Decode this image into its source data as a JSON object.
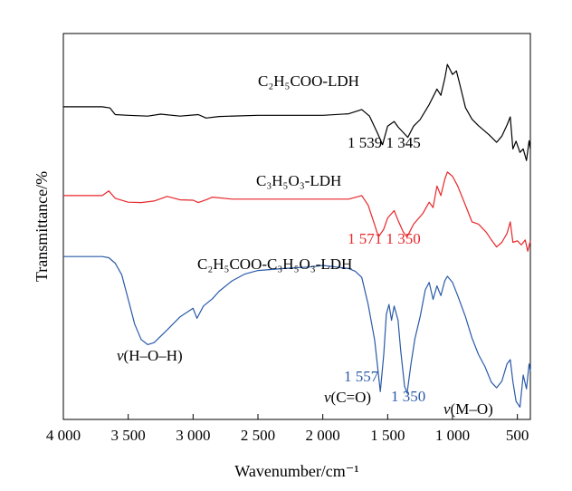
{
  "chart_data": {
    "type": "line",
    "xlabel": "Wavenumber/cm⁻¹",
    "ylabel": "Transmittance/%",
    "xlim": [
      4000,
      400
    ],
    "x_reversed": true,
    "xticks": [
      4000,
      3500,
      3000,
      2500,
      2000,
      1500,
      1000,
      500
    ],
    "xtick_labels": [
      "4 000",
      "3 500",
      "3 000",
      "2 500",
      "2 000",
      "1 500",
      "1 000",
      "500"
    ],
    "y_units": "arbitrary, stacked (offset) transmittance",
    "ylim": [
      0,
      100
    ],
    "grid": false,
    "legend": "none; curves labelled directly",
    "series": [
      {
        "name": "C2H5COO-LDH",
        "label_display": "C₂H₅COO-LDH",
        "color": "#000000",
        "points": [
          [
            4000,
            81
          ],
          [
            3700,
            81
          ],
          [
            3640,
            80.7
          ],
          [
            3600,
            79
          ],
          [
            3500,
            78.8
          ],
          [
            3350,
            78.6
          ],
          [
            3250,
            79.1
          ],
          [
            3100,
            78.6
          ],
          [
            2960,
            79
          ],
          [
            2900,
            78.1
          ],
          [
            2800,
            78.5
          ],
          [
            2500,
            78.8
          ],
          [
            2000,
            78.8
          ],
          [
            1800,
            79.2
          ],
          [
            1700,
            80.3
          ],
          [
            1640,
            78.6
          ],
          [
            1580,
            74.3
          ],
          [
            1539,
            71.2
          ],
          [
            1500,
            76
          ],
          [
            1450,
            77.2
          ],
          [
            1420,
            75.8
          ],
          [
            1345,
            73.1
          ],
          [
            1300,
            76
          ],
          [
            1250,
            77.7
          ],
          [
            1180,
            81.6
          ],
          [
            1120,
            85.6
          ],
          [
            1090,
            84
          ],
          [
            1060,
            88.3
          ],
          [
            1040,
            92
          ],
          [
            1000,
            89.4
          ],
          [
            970,
            90.3
          ],
          [
            940,
            86.3
          ],
          [
            900,
            80.8
          ],
          [
            850,
            77.8
          ],
          [
            800,
            76.1
          ],
          [
            720,
            73.8
          ],
          [
            660,
            71.8
          ],
          [
            620,
            73.4
          ],
          [
            580,
            76.3
          ],
          [
            555,
            78.4
          ],
          [
            535,
            70.1
          ],
          [
            510,
            72.1
          ],
          [
            480,
            69.2
          ],
          [
            455,
            70.1
          ],
          [
            430,
            67.1
          ],
          [
            410,
            72.2
          ],
          [
            400,
            70.1
          ]
        ]
      },
      {
        "name": "C3H5O3-LDH",
        "label_display": "C₃H₅O₃-LDH",
        "color": "#e8262a",
        "points": [
          [
            4000,
            58
          ],
          [
            3700,
            58
          ],
          [
            3650,
            59.2
          ],
          [
            3600,
            57.3
          ],
          [
            3500,
            56.3
          ],
          [
            3400,
            56.2
          ],
          [
            3300,
            56.6
          ],
          [
            3200,
            57.8
          ],
          [
            3100,
            56.9
          ],
          [
            3000,
            56.8
          ],
          [
            2960,
            56.2
          ],
          [
            2900,
            56.9
          ],
          [
            2850,
            57.6
          ],
          [
            2700,
            57.1
          ],
          [
            2500,
            57.1
          ],
          [
            2000,
            57.1
          ],
          [
            1800,
            57.1
          ],
          [
            1700,
            58
          ],
          [
            1650,
            55.5
          ],
          [
            1600,
            50.4
          ],
          [
            1571,
            47.3
          ],
          [
            1530,
            49.3
          ],
          [
            1500,
            52.2
          ],
          [
            1450,
            54.1
          ],
          [
            1420,
            51.6
          ],
          [
            1380,
            48.6
          ],
          [
            1350,
            47.3
          ],
          [
            1300,
            50.6
          ],
          [
            1230,
            53.3
          ],
          [
            1180,
            56.3
          ],
          [
            1150,
            54.9
          ],
          [
            1120,
            60.5
          ],
          [
            1090,
            58
          ],
          [
            1060,
            62.2
          ],
          [
            1040,
            64.1
          ],
          [
            1000,
            63
          ],
          [
            960,
            60.5
          ],
          [
            900,
            55.5
          ],
          [
            850,
            51.2
          ],
          [
            800,
            50.6
          ],
          [
            740,
            48.5
          ],
          [
            700,
            46.5
          ],
          [
            660,
            44.7
          ],
          [
            620,
            45.9
          ],
          [
            580,
            48.2
          ],
          [
            555,
            51.2
          ],
          [
            535,
            45.9
          ],
          [
            500,
            46.3
          ],
          [
            470,
            45.2
          ],
          [
            440,
            46.5
          ],
          [
            420,
            43.6
          ],
          [
            400,
            46.3
          ]
        ]
      },
      {
        "name": "C2H5COO-C3H5O3-LDH",
        "label_display": "C₂H₅COO-C₃H₅O₃-LDH",
        "color": "#2a5aa8",
        "points": [
          [
            4000,
            42.2
          ],
          [
            3700,
            42.2
          ],
          [
            3650,
            41.9
          ],
          [
            3600,
            40.5
          ],
          [
            3550,
            37.5
          ],
          [
            3500,
            31.1
          ],
          [
            3450,
            24.7
          ],
          [
            3400,
            20.7
          ],
          [
            3350,
            19.4
          ],
          [
            3300,
            19.9
          ],
          [
            3200,
            23.2
          ],
          [
            3100,
            26.6
          ],
          [
            3000,
            28.8
          ],
          [
            2970,
            26.2
          ],
          [
            2920,
            29.4
          ],
          [
            2850,
            31.3
          ],
          [
            2800,
            33.2
          ],
          [
            2700,
            35.9
          ],
          [
            2600,
            37.7
          ],
          [
            2500,
            38.6
          ],
          [
            2300,
            39.1
          ],
          [
            2100,
            39.5
          ],
          [
            2000,
            39.9
          ],
          [
            1900,
            39.5
          ],
          [
            1800,
            39.1
          ],
          [
            1750,
            38.4
          ],
          [
            1700,
            36.8
          ],
          [
            1650,
            29.8
          ],
          [
            1600,
            20.5
          ],
          [
            1557,
            7.2
          ],
          [
            1530,
            16.8
          ],
          [
            1510,
            27.3
          ],
          [
            1490,
            29.8
          ],
          [
            1470,
            25.7
          ],
          [
            1450,
            29.4
          ],
          [
            1420,
            25.7
          ],
          [
            1400,
            17.9
          ],
          [
            1370,
            8.6
          ],
          [
            1350,
            6.8
          ],
          [
            1320,
            14.4
          ],
          [
            1290,
            20.9
          ],
          [
            1250,
            26.6
          ],
          [
            1210,
            33.6
          ],
          [
            1180,
            35.5
          ],
          [
            1150,
            31.1
          ],
          [
            1120,
            34.6
          ],
          [
            1090,
            32.1
          ],
          [
            1060,
            35.9
          ],
          [
            1040,
            37.1
          ],
          [
            1000,
            35.5
          ],
          [
            960,
            32.1
          ],
          [
            900,
            26.6
          ],
          [
            850,
            21.1
          ],
          [
            800,
            16.8
          ],
          [
            750,
            13.7
          ],
          [
            700,
            9.6
          ],
          [
            660,
            8.2
          ],
          [
            620,
            9.9
          ],
          [
            580,
            14.4
          ],
          [
            555,
            15.5
          ],
          [
            535,
            9.8
          ],
          [
            510,
            4.7
          ],
          [
            480,
            3.2
          ],
          [
            455,
            11.5
          ],
          [
            430,
            7.9
          ],
          [
            410,
            14.4
          ],
          [
            400,
            12.5
          ]
        ]
      }
    ],
    "annotations": [
      {
        "text": "1 539 1 345",
        "color": "#000000",
        "series": "C2H5COO-LDH"
      },
      {
        "text": "1 571 1 350",
        "color": "#e8262a",
        "series": "C3H5O3-LDH"
      },
      {
        "text": "1 557",
        "color": "#2a5aa8",
        "series": "C2H5COO-C3H5O3-LDH"
      },
      {
        "text": "1 350",
        "color": "#2a5aa8",
        "series": "C2H5COO-C3H5O3-LDH"
      },
      {
        "text_italic": "v",
        "text": "(H–O–H)",
        "color": "#000000"
      },
      {
        "text_italic": "v",
        "text": "(C=O)",
        "color": "#000000"
      },
      {
        "text_italic": "v",
        "text": "(M–O)",
        "color": "#000000"
      }
    ]
  }
}
